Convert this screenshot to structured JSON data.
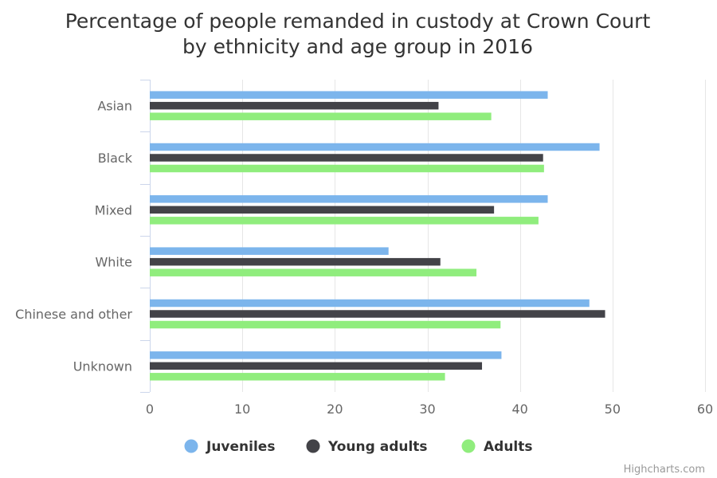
{
  "chart_data": {
    "type": "bar",
    "orientation": "horizontal",
    "title": [
      "Percentage of people remanded in custody at Crown Court",
      "by ethnicity and age group in 2016"
    ],
    "categories": [
      "Asian",
      "Black",
      "Mixed",
      "White",
      "Chinese and other",
      "Unknown"
    ],
    "series": [
      {
        "name": "Juveniles",
        "color": "#7cb5ec",
        "values": [
          43,
          48.6,
          43,
          25.8,
          47.5,
          38
        ]
      },
      {
        "name": "Young adults",
        "color": "#434348",
        "values": [
          31.2,
          42.5,
          37.2,
          31.4,
          49.2,
          35.9
        ]
      },
      {
        "name": "Adults",
        "color": "#90ed7d",
        "values": [
          36.9,
          42.6,
          42,
          35.3,
          37.9,
          31.9
        ]
      }
    ],
    "xlim": [
      0,
      60
    ],
    "xticks": [
      0,
      10,
      20,
      30,
      40,
      50,
      60
    ],
    "grid": true,
    "legend_position": "bottom"
  },
  "credit": "Highcharts.com"
}
